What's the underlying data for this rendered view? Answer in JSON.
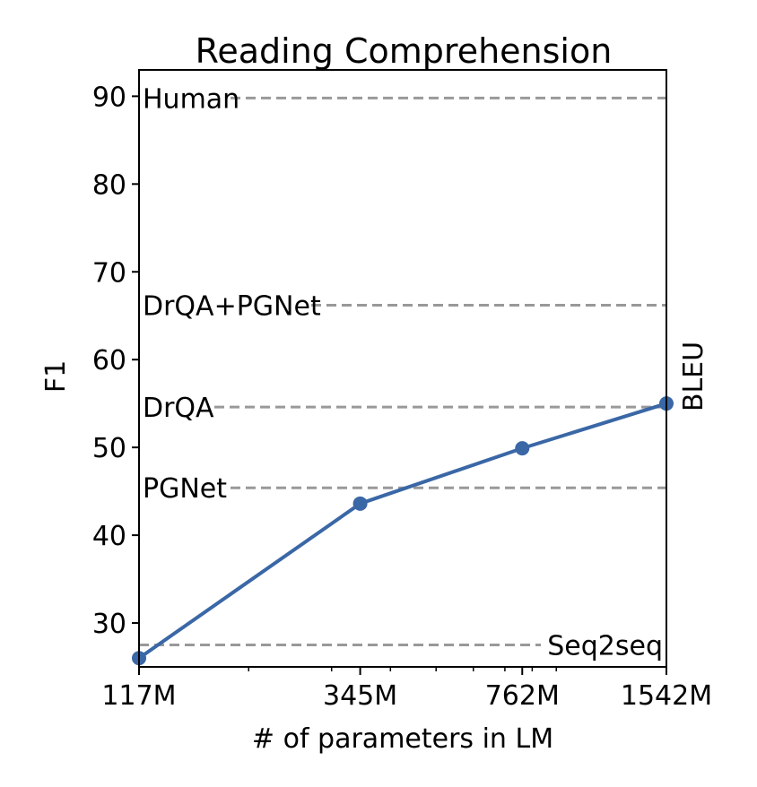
{
  "chart_data": {
    "type": "line",
    "title": "Reading Comprehension",
    "xlabel": "# of parameters in LM",
    "ylabel": "F1",
    "right_label": "BLEU",
    "x_scale": "log",
    "x": [
      117,
      345,
      762,
      1542
    ],
    "x_tick_labels": [
      "117M",
      "345M",
      "762M",
      "1542M"
    ],
    "xlim": [
      117,
      1542
    ],
    "ylim": [
      25,
      93
    ],
    "y_ticks": [
      30,
      40,
      50,
      60,
      70,
      80,
      90
    ],
    "series": [
      {
        "values": [
          26.0,
          43.6,
          49.9,
          55.0
        ],
        "color": "#3a67a6"
      }
    ],
    "reference_lines": [
      {
        "label": "Human",
        "value": 89.8
      },
      {
        "label": "DrQA+PGNet",
        "value": 66.2
      },
      {
        "label": "DrQA",
        "value": 54.6
      },
      {
        "label": "PGNet",
        "value": 45.4
      },
      {
        "label": "Seq2seq",
        "value": 27.5
      }
    ],
    "reference_line_color": "#999999",
    "grid": false
  }
}
